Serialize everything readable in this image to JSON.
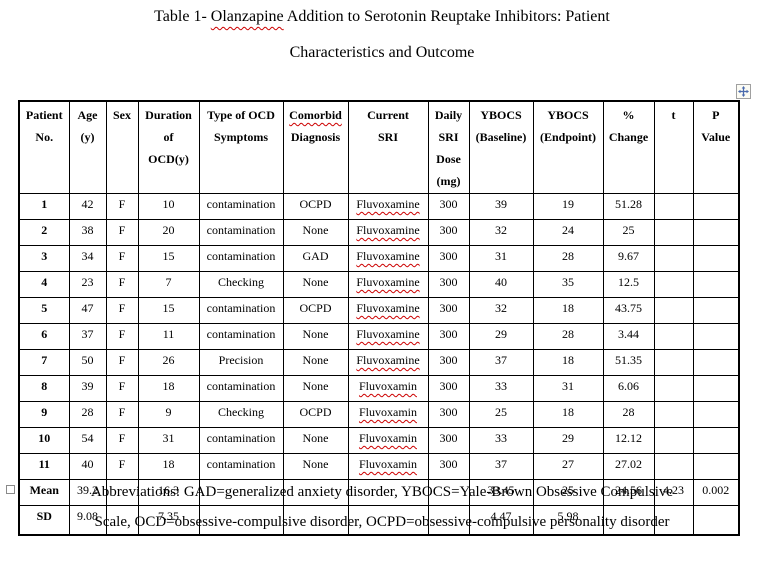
{
  "title": {
    "part1": "Table 1- ",
    "misspelled_word": "Olanzapine",
    "part2": " Addition to Serotonin Reuptake Inhibitors: Patient",
    "line2": "Characteristics and Outcome"
  },
  "colors": {
    "spellcheck_squiggle": "#cc0000",
    "table_border": "#000000",
    "move_handle_arrows": "#4a6aad",
    "handle_border": "#a0a0a0"
  },
  "icons": {
    "move_handle": "table-move-icon",
    "resize_handle": "table-resize-icon"
  },
  "table": {
    "headers": [
      {
        "lines": [
          "Patient",
          "No."
        ]
      },
      {
        "lines": [
          "Age",
          "(y)"
        ]
      },
      {
        "lines": [
          "Sex"
        ]
      },
      {
        "lines": [
          "Duration",
          "of",
          "OCD(y)"
        ]
      },
      {
        "lines": [
          "Type of OCD",
          "Symptoms"
        ]
      },
      {
        "lines": [
          "Comorbid",
          "Diagnosis"
        ],
        "misspelled_line_index": 0
      },
      {
        "lines": [
          "Current",
          "SRI"
        ]
      },
      {
        "lines": [
          "Daily",
          "SRI",
          "Dose",
          "(mg)"
        ]
      },
      {
        "lines": [
          "YBOCS",
          "(Baseline)"
        ]
      },
      {
        "lines": [
          "YBOCS",
          "(Endpoint)"
        ]
      },
      {
        "lines": [
          "%",
          "Change"
        ]
      },
      {
        "lines": [
          "t"
        ]
      },
      {
        "lines": [
          "P",
          "Value"
        ]
      }
    ],
    "rows": [
      {
        "type": "data",
        "cells": [
          "1",
          "42",
          "F",
          "10",
          "contamination",
          "OCPD",
          "Fluvoxamine",
          "300",
          "39",
          "19",
          "51.28",
          "",
          ""
        ],
        "misspelled_cells": [
          6
        ]
      },
      {
        "type": "data",
        "cells": [
          "2",
          "38",
          "F",
          "20",
          "contamination",
          "None",
          "Fluvoxamine",
          "300",
          "32",
          "24",
          "25",
          "",
          ""
        ],
        "misspelled_cells": [
          6
        ]
      },
      {
        "type": "data",
        "cells": [
          "3",
          "34",
          "F",
          "15",
          "contamination",
          "GAD",
          "Fluvoxamine",
          "300",
          "31",
          "28",
          "9.67",
          "",
          ""
        ],
        "misspelled_cells": [
          6
        ]
      },
      {
        "type": "data",
        "cells": [
          "4",
          "23",
          "F",
          "7",
          "Checking",
          "None",
          "Fluvoxamine",
          "300",
          "40",
          "35",
          "12.5",
          "",
          ""
        ],
        "misspelled_cells": [
          6
        ]
      },
      {
        "type": "data",
        "cells": [
          "5",
          "47",
          "F",
          "15",
          "contamination",
          "OCPD",
          "Fluvoxamine",
          "300",
          "32",
          "18",
          "43.75",
          "",
          ""
        ],
        "misspelled_cells": [
          6
        ]
      },
      {
        "type": "data",
        "cells": [
          "6",
          "37",
          "F",
          "11",
          "contamination",
          "None",
          "Fluvoxamine",
          "300",
          "29",
          "28",
          "3.44",
          "",
          ""
        ],
        "misspelled_cells": [
          6
        ]
      },
      {
        "type": "data",
        "cells": [
          "7",
          "50",
          "F",
          "26",
          "Precision",
          "None",
          "Fluvoxamine",
          "300",
          "37",
          "18",
          "51.35",
          "",
          ""
        ],
        "misspelled_cells": [
          6
        ]
      },
      {
        "type": "data",
        "cells": [
          "8",
          "39",
          "F",
          "18",
          "contamination",
          "None",
          "Fluvoxamin",
          "300",
          "33",
          "31",
          "6.06",
          "",
          ""
        ],
        "misspelled_cells": [
          6
        ]
      },
      {
        "type": "data",
        "cells": [
          "9",
          "28",
          "F",
          "9",
          "Checking",
          "OCPD",
          "Fluvoxamin",
          "300",
          "25",
          "18",
          "28",
          "",
          ""
        ],
        "misspelled_cells": [
          6
        ]
      },
      {
        "type": "data",
        "cells": [
          "10",
          "54",
          "F",
          "31",
          "contamination",
          "None",
          "Fluvoxamin",
          "300",
          "33",
          "29",
          "12.12",
          "",
          ""
        ],
        "misspelled_cells": [
          6
        ]
      },
      {
        "type": "data",
        "cells": [
          "11",
          "40",
          "F",
          "18",
          "contamination",
          "None",
          "Fluvoxamin",
          "300",
          "37",
          "27",
          "27.02",
          "",
          ""
        ],
        "misspelled_cells": [
          6
        ]
      },
      {
        "type": "mean",
        "cells": [
          "Mean",
          "39.2",
          "",
          "16.3",
          "",
          "",
          "",
          "",
          "33.45",
          "25",
          "24.56",
          "4.23",
          "0.002"
        ],
        "misspelled_cells": []
      },
      {
        "type": "sd",
        "cells": [
          "SD",
          "9.08",
          "",
          "7.35",
          "",
          "",
          "",
          "",
          "4.47",
          "5.98",
          "",
          "",
          ""
        ],
        "misspelled_cells": []
      }
    ]
  },
  "footer": {
    "line1": "Abbreviations: GAD=generalized anxiety disorder, YBOCS=Yale-Brown Obsessive Compulsive",
    "line2": "Scale, OCD=obsessive-compulsive disorder, OCPD=obsessive-compulsive personality disorder"
  }
}
